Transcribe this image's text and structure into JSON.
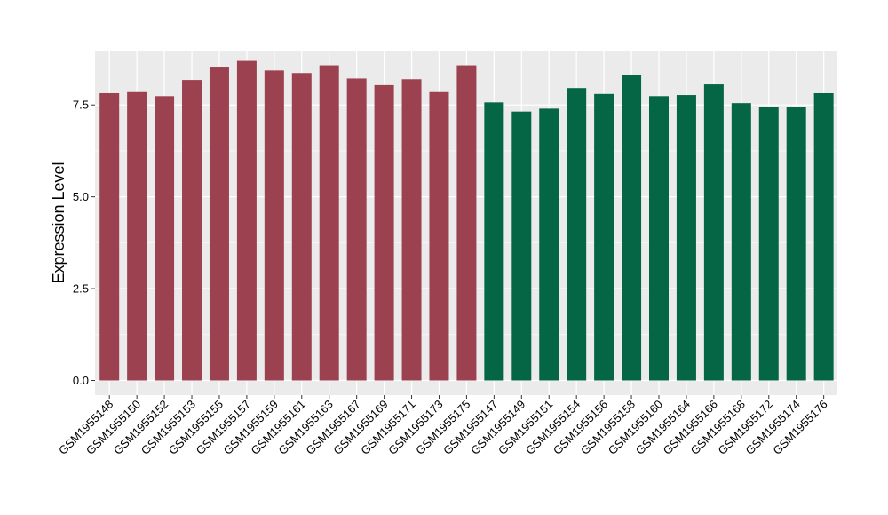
{
  "chart_data": {
    "type": "bar",
    "ylabel": "Expression Level",
    "xlabel": "",
    "ylim": [
      0,
      8.98
    ],
    "yticks": [
      0.0,
      2.5,
      5.0,
      7.5
    ],
    "ytick_labels": [
      "0.0",
      "2.5",
      "5.0",
      "7.5"
    ],
    "grid": true,
    "categories": [
      "GSM1955148",
      "GSM1955150",
      "GSM1955152",
      "GSM1955153",
      "GSM1955155",
      "GSM1955157",
      "GSM1955159",
      "GSM1955161",
      "GSM1955163",
      "GSM1955167",
      "GSM1955169",
      "GSM1955171",
      "GSM1955173",
      "GSM1955175",
      "GSM1955147",
      "GSM1955149",
      "GSM1955151",
      "GSM1955154",
      "GSM1955156",
      "GSM1955158",
      "GSM1955160",
      "GSM1955164",
      "GSM1955166",
      "GSM1955168",
      "GSM1955172",
      "GSM1955174",
      "GSM1955176"
    ],
    "values": [
      7.82,
      7.85,
      7.74,
      8.18,
      8.52,
      8.7,
      8.44,
      8.37,
      8.58,
      8.22,
      8.04,
      8.2,
      7.85,
      8.58,
      7.57,
      7.32,
      7.4,
      7.96,
      7.8,
      8.32,
      7.74,
      7.77,
      8.06,
      7.55,
      7.45,
      7.45,
      7.82
    ],
    "group_sizes": [
      14,
      13
    ],
    "colors": {
      "group1": "#9b4150",
      "group2": "#046644",
      "panel": "#ebebeb",
      "grid": "#ffffff"
    }
  }
}
